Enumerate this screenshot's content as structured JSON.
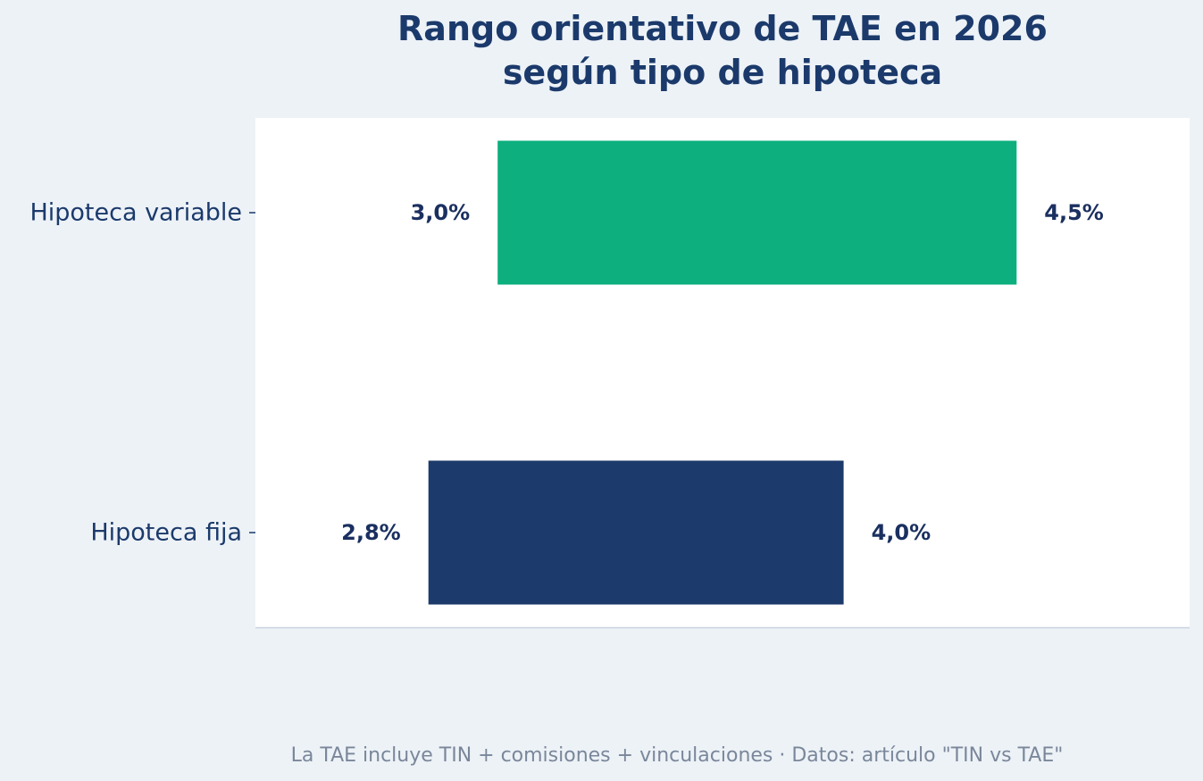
{
  "chart_data": {
    "type": "bar",
    "orientation": "horizontal",
    "style": "floating-range",
    "title_lines": [
      "Rango orientativo de TAE en 2026",
      "según tipo de hipoteca"
    ],
    "categories": [
      "Hipoteca variable",
      "Hipoteca fija"
    ],
    "ranges": [
      {
        "category": "Hipoteca variable",
        "low": 3.0,
        "high": 4.5,
        "low_label": "3,0%",
        "high_label": "4,5%",
        "color": "#0daf7e"
      },
      {
        "category": "Hipoteca fija",
        "low": 2.8,
        "high": 4.0,
        "low_label": "2,8%",
        "high_label": "4,0%",
        "color": "#1c3a6b"
      }
    ],
    "xlim": [
      2.3,
      5.0
    ],
    "x_axis_visible": false,
    "grid": false,
    "footnote": "La TAE incluye TIN + comisiones + vinculaciones  ·  Datos: artículo \"TIN vs TAE\""
  },
  "colors": {
    "background": "#edf2f7",
    "plot_background": "#ffffff",
    "text": "#1b3a6b",
    "label_text": "#1b3060",
    "footnote": "#7a879a",
    "axis_line": "#c8d3df"
  }
}
